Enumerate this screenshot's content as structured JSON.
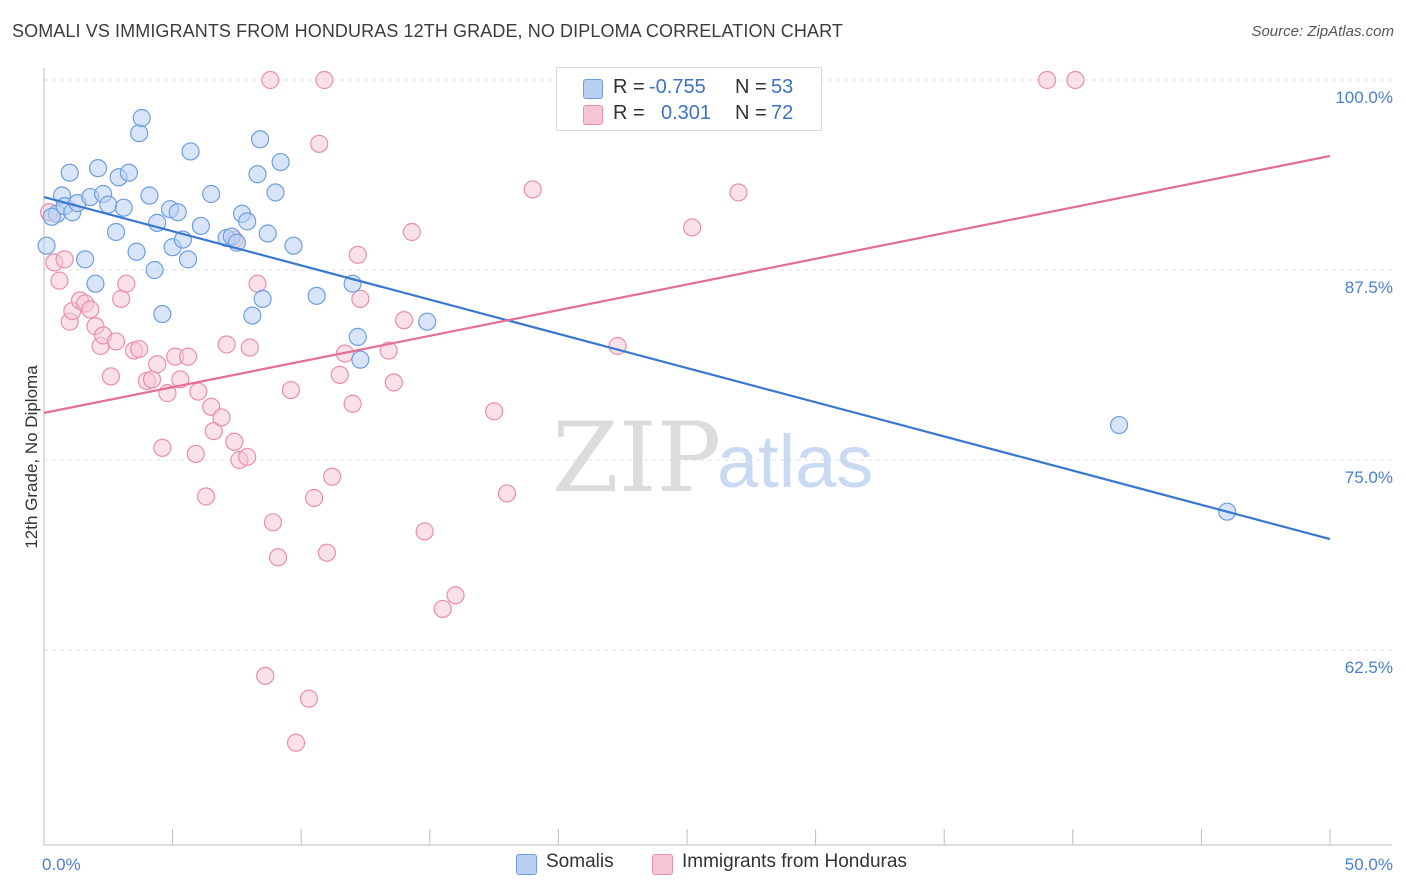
{
  "header": {
    "title": "SOMALI VS IMMIGRANTS FROM HONDURAS 12TH GRADE, NO DIPLOMA CORRELATION CHART",
    "source": "Source: ZipAtlas.com"
  },
  "watermark": {
    "zip": "ZIP",
    "atlas": "atlas"
  },
  "legend": {
    "somali": {
      "r_label": "R =",
      "r_value": "-0.755",
      "n_label": "N =",
      "n_value": "53"
    },
    "honduras": {
      "r_label": "R =",
      "r_value": "0.301",
      "n_label": "N =",
      "n_value": "72"
    }
  },
  "bottom_legend": {
    "somali": "Somalis",
    "honduras": "Immigrants from Honduras"
  },
  "colors": {
    "somali_fill": "#b8d0f2",
    "somali_stroke": "#6e9ee0",
    "somali_line": "#3a78d0",
    "honduras_fill": "#f6c6d6",
    "honduras_stroke": "#e98fae",
    "honduras_line": "#e46e97",
    "tick_text": "#4a7fd0",
    "grid": "#e0e0e0"
  },
  "chart_data": {
    "type": "scatter",
    "title": "SOMALI VS IMMIGRANTS FROM HONDURAS 12TH GRADE, NO DIPLOMA CORRELATION CHART",
    "xlabel": "",
    "ylabel": "12th Grade, No Diploma",
    "xlim": [
      0,
      50
    ],
    "ylim": [
      51.5,
      102
    ],
    "x_tick_labels": [
      "0.0%",
      "50.0%"
    ],
    "y_ticks": [
      100,
      87.5,
      75,
      62.5
    ],
    "y_tick_labels": [
      "100.0%",
      "87.5%",
      "75.0%",
      "62.5%"
    ],
    "grid": true,
    "legend_position": "top-center",
    "series": [
      {
        "name": "Somalis",
        "r": -0.755,
        "n": 53,
        "trend": {
          "x": [
            0,
            50
          ],
          "y": [
            92.3,
            69.8
          ]
        },
        "points": [
          [
            0.1,
            89.1
          ],
          [
            0.5,
            91.2
          ],
          [
            0.7,
            92.4
          ],
          [
            0.8,
            91.7
          ],
          [
            1.0,
            93.9
          ],
          [
            1.1,
            91.3
          ],
          [
            1.3,
            91.9
          ],
          [
            1.6,
            88.2
          ],
          [
            1.8,
            92.3
          ],
          [
            2.0,
            86.6
          ],
          [
            2.1,
            94.2
          ],
          [
            2.3,
            92.5
          ],
          [
            2.5,
            91.8
          ],
          [
            2.8,
            90.0
          ],
          [
            2.9,
            93.6
          ],
          [
            3.1,
            91.6
          ],
          [
            3.3,
            93.9
          ],
          [
            3.6,
            88.7
          ],
          [
            3.7,
            96.5
          ],
          [
            3.8,
            97.5
          ],
          [
            4.1,
            92.4
          ],
          [
            4.3,
            87.5
          ],
          [
            4.4,
            90.6
          ],
          [
            4.6,
            84.6
          ],
          [
            4.9,
            91.5
          ],
          [
            5.0,
            89.0
          ],
          [
            5.2,
            91.3
          ],
          [
            5.4,
            89.5
          ],
          [
            5.6,
            88.2
          ],
          [
            5.7,
            95.3
          ],
          [
            6.1,
            90.4
          ],
          [
            6.5,
            92.5
          ],
          [
            7.1,
            89.6
          ],
          [
            7.3,
            89.7
          ],
          [
            7.5,
            89.3
          ],
          [
            7.7,
            91.2
          ],
          [
            7.9,
            90.7
          ],
          [
            8.1,
            84.5
          ],
          [
            8.3,
            93.8
          ],
          [
            8.4,
            96.1
          ],
          [
            8.5,
            85.6
          ],
          [
            8.7,
            89.9
          ],
          [
            9.0,
            92.6
          ],
          [
            9.2,
            94.6
          ],
          [
            9.7,
            89.1
          ],
          [
            10.6,
            85.8
          ],
          [
            12.0,
            86.6
          ],
          [
            12.2,
            83.1
          ],
          [
            12.3,
            81.6
          ],
          [
            14.9,
            84.1
          ],
          [
            41.8,
            77.3
          ],
          [
            46.0,
            71.6
          ],
          [
            0.3,
            91.0
          ]
        ]
      },
      {
        "name": "Immigrants from Honduras",
        "r": 0.301,
        "n": 72,
        "trend": {
          "x": [
            0,
            50
          ],
          "y": [
            78.1,
            95.0
          ]
        },
        "points": [
          [
            0.2,
            91.3
          ],
          [
            0.4,
            88.0
          ],
          [
            0.6,
            86.8
          ],
          [
            0.8,
            88.2
          ],
          [
            1.0,
            84.1
          ],
          [
            1.1,
            84.8
          ],
          [
            1.4,
            85.5
          ],
          [
            1.6,
            85.3
          ],
          [
            1.8,
            84.9
          ],
          [
            2.0,
            83.8
          ],
          [
            2.2,
            82.5
          ],
          [
            2.3,
            83.2
          ],
          [
            2.6,
            80.5
          ],
          [
            2.8,
            82.8
          ],
          [
            3.0,
            85.6
          ],
          [
            3.2,
            86.6
          ],
          [
            3.5,
            82.2
          ],
          [
            3.7,
            82.3
          ],
          [
            4.0,
            80.2
          ],
          [
            4.2,
            80.3
          ],
          [
            4.4,
            81.3
          ],
          [
            4.6,
            75.8
          ],
          [
            4.8,
            79.4
          ],
          [
            5.1,
            81.8
          ],
          [
            5.3,
            80.3
          ],
          [
            5.6,
            81.8
          ],
          [
            5.9,
            75.4
          ],
          [
            6.0,
            79.5
          ],
          [
            6.3,
            72.6
          ],
          [
            6.5,
            78.5
          ],
          [
            6.6,
            76.9
          ],
          [
            6.9,
            77.8
          ],
          [
            7.1,
            82.6
          ],
          [
            7.4,
            76.2
          ],
          [
            7.6,
            75.0
          ],
          [
            7.9,
            75.2
          ],
          [
            8.0,
            82.4
          ],
          [
            8.3,
            86.6
          ],
          [
            8.6,
            60.8
          ],
          [
            8.8,
            100.0
          ],
          [
            8.9,
            70.9
          ],
          [
            9.1,
            68.6
          ],
          [
            9.6,
            79.6
          ],
          [
            9.8,
            56.4
          ],
          [
            10.3,
            59.3
          ],
          [
            10.5,
            72.5
          ],
          [
            10.7,
            95.8
          ],
          [
            10.9,
            100.0
          ],
          [
            11.0,
            68.9
          ],
          [
            11.2,
            73.9
          ],
          [
            11.5,
            80.6
          ],
          [
            11.7,
            82.0
          ],
          [
            12.0,
            78.7
          ],
          [
            12.2,
            88.5
          ],
          [
            12.3,
            85.6
          ],
          [
            13.4,
            82.2
          ],
          [
            13.6,
            80.1
          ],
          [
            14.0,
            84.2
          ],
          [
            14.3,
            90.0
          ],
          [
            14.8,
            70.3
          ],
          [
            15.5,
            65.2
          ],
          [
            16.0,
            66.1
          ],
          [
            17.5,
            78.2
          ],
          [
            18.0,
            72.8
          ],
          [
            19.0,
            92.8
          ],
          [
            22.3,
            82.5
          ],
          [
            25.2,
            90.3
          ],
          [
            27.0,
            92.6
          ],
          [
            28.0,
            100.0
          ],
          [
            39.0,
            100.0
          ],
          [
            40.1,
            100.0
          ],
          [
            7.4,
            89.5
          ]
        ]
      }
    ]
  }
}
